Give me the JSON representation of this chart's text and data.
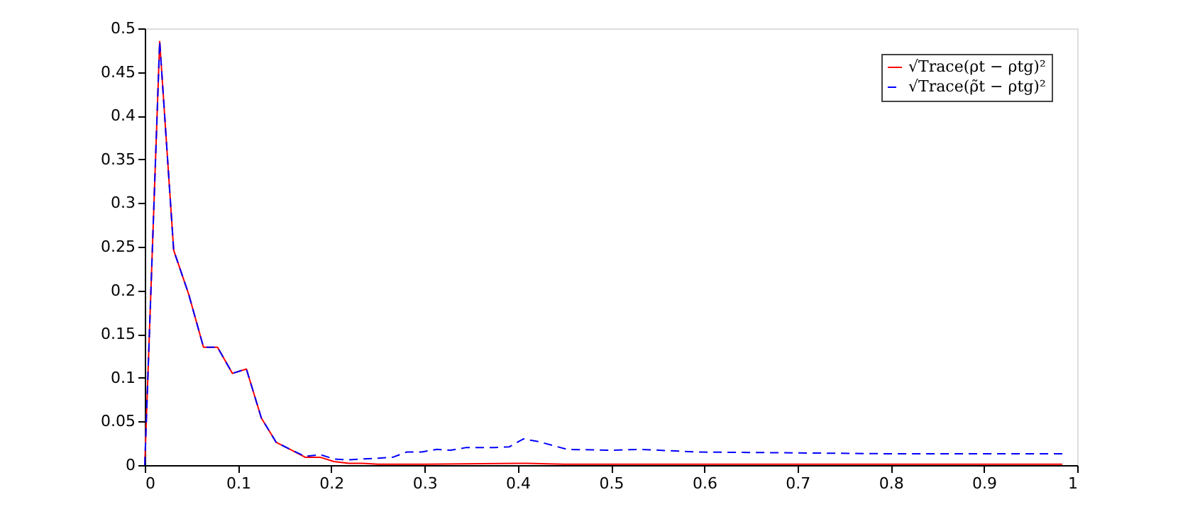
{
  "chart_data": {
    "type": "line",
    "series": [
      {
        "name": "√Trace(ρt − ρtg)²",
        "color": "#ff0000",
        "line_style": "solid",
        "x": [
          0,
          0.016,
          0.031,
          0.047,
          0.063,
          0.078,
          0.094,
          0.109,
          0.125,
          0.141,
          0.156,
          0.172,
          0.188,
          0.203,
          0.219,
          0.234,
          0.25,
          0.3,
          0.4,
          0.41,
          0.45,
          0.6,
          0.984
        ],
        "values": [
          0,
          0.485,
          0.246,
          0.196,
          0.135,
          0.135,
          0.105,
          0.11,
          0.054,
          0.026,
          0.018,
          0.009,
          0.009,
          0.004,
          0.002,
          0.002,
          0.001,
          0.001,
          0.002,
          0.002,
          0.001,
          0.001,
          0.001
        ]
      },
      {
        "name": "√Trace(ρ̃t − ρtg)²",
        "color": "#0000ff",
        "line_style": "dashed",
        "x": [
          0,
          0.016,
          0.031,
          0.047,
          0.063,
          0.078,
          0.094,
          0.109,
          0.125,
          0.141,
          0.156,
          0.172,
          0.188,
          0.203,
          0.219,
          0.234,
          0.25,
          0.266,
          0.281,
          0.297,
          0.313,
          0.328,
          0.344,
          0.375,
          0.391,
          0.406,
          0.422,
          0.453,
          0.5,
          0.531,
          0.594,
          0.7,
          0.8,
          0.984
        ],
        "values": [
          0,
          0.485,
          0.246,
          0.196,
          0.135,
          0.135,
          0.105,
          0.11,
          0.054,
          0.026,
          0.018,
          0.01,
          0.012,
          0.007,
          0.006,
          0.007,
          0.008,
          0.009,
          0.015,
          0.015,
          0.018,
          0.017,
          0.02,
          0.02,
          0.021,
          0.03,
          0.027,
          0.018,
          0.017,
          0.018,
          0.015,
          0.014,
          0.013,
          0.013
        ]
      }
    ],
    "xlim": [
      0,
      1
    ],
    "xticks": [
      0,
      0.1,
      0.2,
      0.3,
      0.4,
      0.5,
      0.6,
      0.7,
      0.8,
      0.9,
      1
    ],
    "ylim": [
      0,
      0.5
    ],
    "yticks": [
      0,
      0.05,
      0.1,
      0.15,
      0.2,
      0.25,
      0.3,
      0.35,
      0.4,
      0.45,
      0.5
    ],
    "grid": false,
    "legend": "top right",
    "marker": "none"
  }
}
